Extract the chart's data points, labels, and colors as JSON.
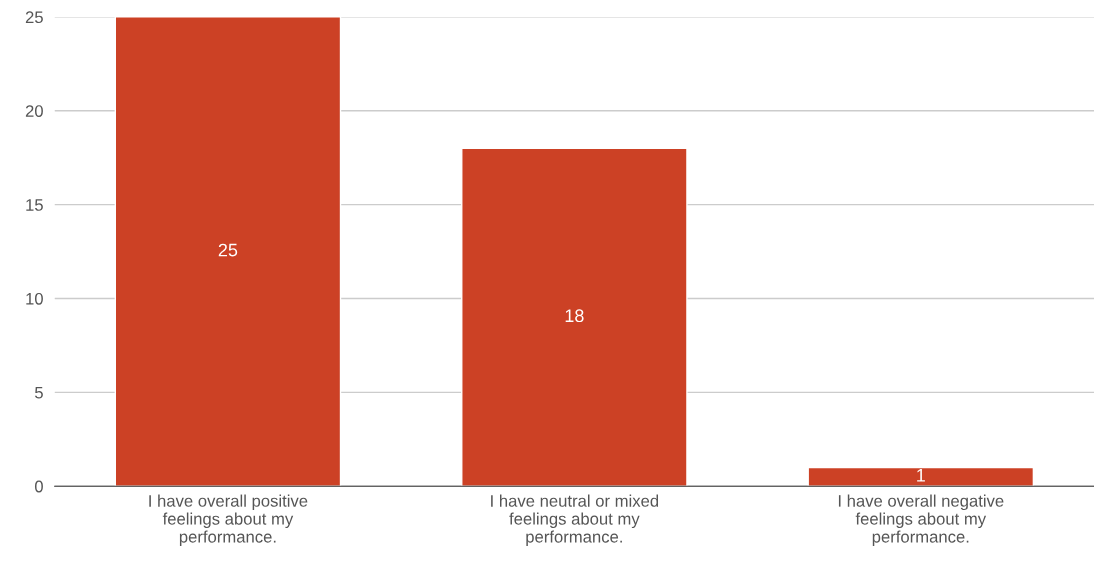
{
  "chart_data": {
    "type": "bar",
    "categories": [
      "I have overall positive\nfeelings about my\nperformance.",
      "I have neutral or mixed\nfeelings about my\nperformance.",
      "I have overall negative\nfeelings about my\nperformance."
    ],
    "values": [
      25,
      18,
      1
    ],
    "color": "#cc4125",
    "ylim": [
      0,
      25
    ],
    "yticks": [
      0,
      5,
      10,
      15,
      20,
      25
    ],
    "grid": "y",
    "data_labels": true,
    "legend": false
  }
}
